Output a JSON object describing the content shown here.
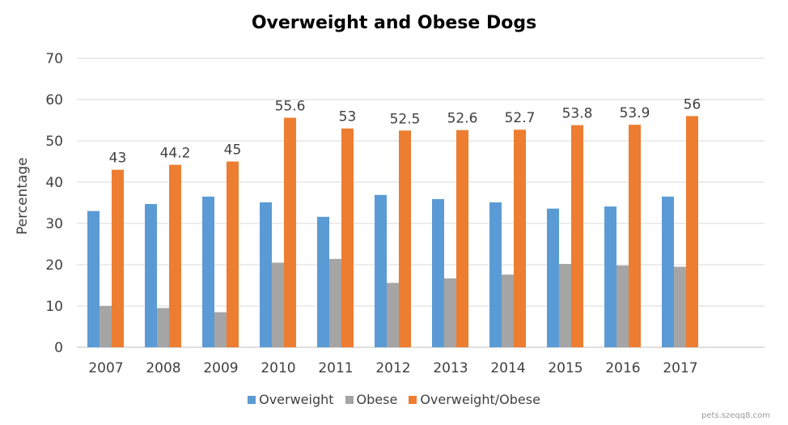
{
  "chart_data": {
    "type": "bar",
    "title": "Overweight and Obese Dogs",
    "xlabel": "",
    "ylabel": "Percentage",
    "ylim": [
      0,
      70
    ],
    "yticks": [
      0,
      10,
      20,
      30,
      40,
      50,
      60,
      70
    ],
    "grid": true,
    "legend_position": "bottom",
    "categories": [
      "2007",
      "2008",
      "2009",
      "2010",
      "2011",
      "2012",
      "2013",
      "2014",
      "2015",
      "2016",
      "2017"
    ],
    "series": [
      {
        "name": "Overweight",
        "color": "#5B9BD5",
        "values": [
          33,
          34.7,
          36.5,
          35.1,
          31.6,
          36.9,
          35.9,
          35.1,
          33.6,
          34.1,
          36.5
        ]
      },
      {
        "name": "Obese",
        "color": "#A5A5A5",
        "values": [
          10,
          9.5,
          8.5,
          20.5,
          21.4,
          15.6,
          16.7,
          17.6,
          20.2,
          19.8,
          19.5
        ]
      },
      {
        "name": "Overweight/Obese",
        "color": "#ED7D31",
        "values": [
          43,
          44.2,
          45,
          55.6,
          53,
          52.5,
          52.6,
          52.7,
          53.8,
          53.9,
          56
        ],
        "data_labels": [
          "43",
          "44.2",
          "45",
          "55.6",
          "53",
          "52.5",
          "52.6",
          "52.7",
          "53.8",
          "53.9",
          "56"
        ]
      }
    ]
  },
  "watermark": "pets.szeqq8.com"
}
